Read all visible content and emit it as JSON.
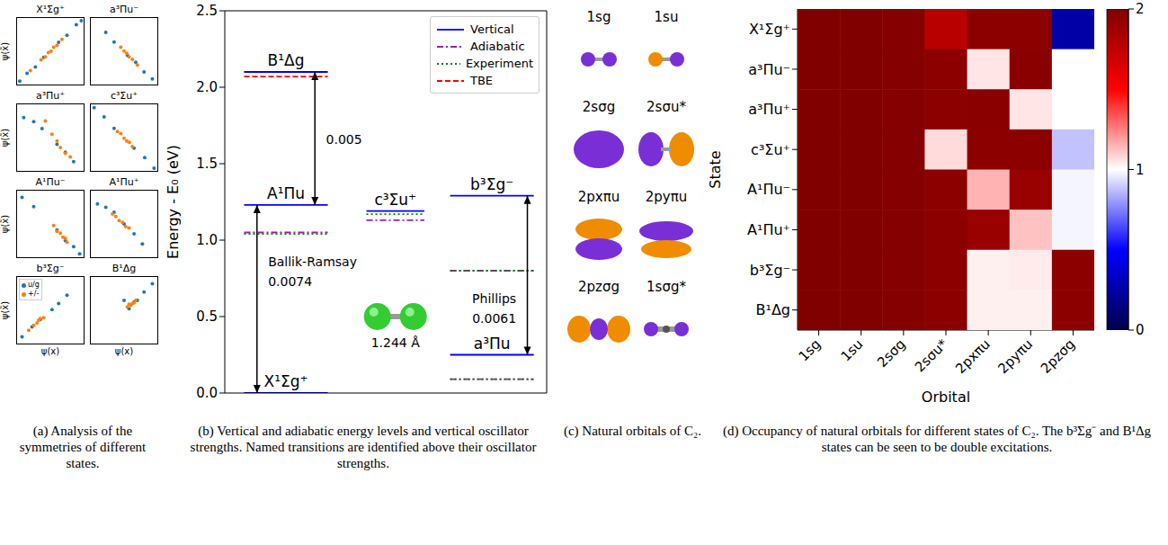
{
  "chart_data": [
    {
      "type": "scatter",
      "caption": "(a) Analysis of the symmetries of different states.",
      "x_label": "ψ(x)",
      "y_label": "ψ(x̃)",
      "xlim": [
        -1,
        1
      ],
      "ylim": [
        -1,
        1
      ],
      "tick_labels": false,
      "legend": "upper left",
      "subplots": [
        {
          "title": "X¹Σg⁺",
          "series": [
            {
              "name": "u/g",
              "color": "#1f77b4",
              "points": [
                [
                  -0.92,
                  -0.9
                ],
                [
                  -0.7,
                  -0.66
                ],
                [
                  -0.45,
                  -0.47
                ],
                [
                  -0.2,
                  -0.18
                ],
                [
                  0.25,
                  0.27
                ],
                [
                  0.5,
                  0.48
                ],
                [
                  0.78,
                  0.8
                ],
                [
                  0.93,
                  0.92
                ]
              ]
            },
            {
              "name": "+/-",
              "color": "#ff7f0e",
              "points": [
                [
                  -0.28,
                  -0.26
                ],
                [
                  -0.15,
                  -0.17
                ],
                [
                  -0.06,
                  -0.04
                ],
                [
                  0.02,
                  0.0
                ],
                [
                  0.1,
                  0.12
                ],
                [
                  0.2,
                  0.18
                ],
                [
                  0.35,
                  0.36
                ],
                [
                  -0.6,
                  -0.58
                ]
              ]
            }
          ]
        },
        {
          "title": "a³Πu⁻",
          "series": [
            {
              "name": "u/g",
              "color": "#1f77b4",
              "points": [
                [
                  -0.55,
                  0.57
                ],
                [
                  -0.3,
                  0.28
                ],
                [
                  0.1,
                  -0.12
                ],
                [
                  0.35,
                  -0.33
                ],
                [
                  0.6,
                  -0.62
                ],
                [
                  0.85,
                  -0.83
                ]
              ]
            },
            {
              "name": "+/-",
              "color": "#ff7f0e",
              "points": [
                [
                  -0.1,
                  0.12
                ],
                [
                  0.0,
                  0.01
                ],
                [
                  0.08,
                  -0.06
                ],
                [
                  0.15,
                  -0.17
                ],
                [
                  0.25,
                  -0.24
                ],
                [
                  0.4,
                  -0.41
                ]
              ]
            }
          ]
        },
        {
          "title": "a³Πu⁺",
          "series": [
            {
              "name": "u/g",
              "color": "#1f77b4",
              "points": [
                [
                  -0.8,
                  0.6
                ],
                [
                  -0.5,
                  0.48
                ],
                [
                  -0.25,
                  0.27
                ],
                [
                  0.2,
                  -0.2
                ],
                [
                  0.45,
                  -0.44
                ],
                [
                  0.7,
                  -0.72
                ]
              ]
            },
            {
              "name": "+/-",
              "color": "#ff7f0e",
              "points": [
                [
                  -0.15,
                  0.5
                ],
                [
                  0.05,
                  0.1
                ],
                [
                  0.2,
                  -0.1
                ],
                [
                  0.3,
                  -0.3
                ],
                [
                  0.45,
                  -0.47
                ],
                [
                  0.6,
                  -0.58
                ]
              ]
            }
          ]
        },
        {
          "title": "c³Σu⁺",
          "series": [
            {
              "name": "u/g",
              "color": "#1f77b4",
              "points": [
                [
                  -0.9,
                  0.9
                ],
                [
                  -0.6,
                  0.62
                ],
                [
                  -0.3,
                  0.28
                ],
                [
                  0.3,
                  -0.32
                ],
                [
                  0.62,
                  -0.6
                ],
                [
                  0.9,
                  -0.92
                ]
              ]
            },
            {
              "name": "+/-",
              "color": "#ff7f0e",
              "points": [
                [
                  -0.2,
                  0.18
                ],
                [
                  -0.1,
                  0.12
                ],
                [
                  0.0,
                  -0.02
                ],
                [
                  0.08,
                  -0.1
                ],
                [
                  0.16,
                  -0.14
                ],
                [
                  0.25,
                  -0.27
                ]
              ]
            }
          ]
        },
        {
          "title": "A¹Πu⁻",
          "series": [
            {
              "name": "u/g",
              "color": "#1f77b4",
              "points": [
                [
                  -0.85,
                  0.8
                ],
                [
                  -0.5,
                  0.52
                ],
                [
                  0.2,
                  -0.18
                ],
                [
                  0.45,
                  -0.5
                ],
                [
                  0.7,
                  -0.68
                ],
                [
                  0.88,
                  -0.9
                ]
              ]
            },
            {
              "name": "+/-",
              "color": "#ff7f0e",
              "points": [
                [
                  0.1,
                  -0.05
                ],
                [
                  0.2,
                  -0.22
                ],
                [
                  0.3,
                  -0.28
                ],
                [
                  0.38,
                  -0.4
                ],
                [
                  0.45,
                  -0.43
                ],
                [
                  0.5,
                  -0.55
                ]
              ]
            }
          ]
        },
        {
          "title": "A¹Πu⁺",
          "series": [
            {
              "name": "u/g",
              "color": "#1f77b4",
              "points": [
                [
                  -0.8,
                  0.6
                ],
                [
                  -0.55,
                  0.5
                ],
                [
                  -0.3,
                  0.35
                ],
                [
                  0.0,
                  0.0
                ],
                [
                  0.3,
                  -0.3
                ],
                [
                  0.55,
                  -0.6
                ]
              ]
            },
            {
              "name": "+/-",
              "color": "#ff7f0e",
              "points": [
                [
                  -0.35,
                  0.3
                ],
                [
                  -0.25,
                  0.22
                ],
                [
                  -0.15,
                  0.1
                ],
                [
                  -0.05,
                  0.05
                ],
                [
                  0.05,
                  -0.08
                ],
                [
                  0.15,
                  -0.12
                ]
              ]
            }
          ]
        },
        {
          "title": "b³Σg⁻",
          "series": [
            {
              "name": "u/g",
              "color": "#1f77b4",
              "points": [
                [
                  -0.85,
                  -0.8
                ],
                [
                  -0.55,
                  -0.5
                ],
                [
                  -0.3,
                  -0.28
                ],
                [
                  0.05,
                  0.02
                ],
                [
                  0.25,
                  0.2
                ],
                [
                  0.5,
                  0.45
                ]
              ]
            },
            {
              "name": "+/-",
              "color": "#ff7f0e",
              "points": [
                [
                  -0.65,
                  -0.6
                ],
                [
                  -0.5,
                  -0.45
                ],
                [
                  -0.4,
                  -0.38
                ],
                [
                  -0.3,
                  -0.25
                ],
                [
                  -0.2,
                  -0.22
                ],
                [
                  -0.35,
                  -0.3
                ]
              ]
            }
          ]
        },
        {
          "title": "B¹Δg",
          "series": [
            {
              "name": "u/g",
              "color": "#1f77b4",
              "points": [
                [
                  0.0,
                  0.3
                ],
                [
                  0.15,
                  0.05
                ],
                [
                  0.3,
                  0.25
                ],
                [
                  0.4,
                  0.3
                ],
                [
                  0.6,
                  0.55
                ],
                [
                  0.85,
                  0.8
                ]
              ]
            },
            {
              "name": "+/-",
              "color": "#ff7f0e",
              "points": [
                [
                  0.1,
                  0.1
                ],
                [
                  0.2,
                  0.15
                ],
                [
                  0.25,
                  0.2
                ],
                [
                  0.3,
                  0.22
                ],
                [
                  0.35,
                  0.3
                ],
                [
                  0.15,
                  0.18
                ]
              ]
            }
          ]
        }
      ]
    },
    {
      "type": "energy_levels",
      "caption": "(b) Vertical and adiabatic energy levels and vertical oscillator strengths. Named transitions are identified above their oscillator strengths.",
      "y_label": "Energy - E₀ (eV)",
      "ylim": [
        0,
        2.5
      ],
      "yticks": [
        {
          "value": 0,
          "label": "0.0"
        },
        {
          "value": 0.5,
          "label": "0.5"
        },
        {
          "value": 1,
          "label": "1.0"
        },
        {
          "value": 1.5,
          "label": "1.5"
        },
        {
          "value": 2,
          "label": "2.0"
        },
        {
          "value": 2.5,
          "label": "2.5"
        }
      ],
      "categories": [
        "X¹Σg⁺",
        "A¹Πu",
        "B¹Δg",
        "c³Σu⁺",
        "a³Πu",
        "b³Σg⁻"
      ],
      "series": [
        {
          "name": "Vertical",
          "color": "#0000ff",
          "line_style": "solid",
          "values": [
            0.0,
            1.23,
            2.1,
            1.19,
            0.25,
            1.29
          ]
        },
        {
          "name": "Adiabatic",
          "color": "#a020a0",
          "line_style": "dashdot",
          "values": [
            null,
            1.05,
            null,
            1.13,
            0.09,
            0.8
          ]
        },
        {
          "name": "Experiment",
          "color": "#008000",
          "line_style": "dotted",
          "values": [
            null,
            1.04,
            null,
            1.17,
            0.09,
            0.8
          ]
        },
        {
          "name": "TBE",
          "color": "#ff0000",
          "line_style": "dashed",
          "values": [
            null,
            null,
            2.07,
            null,
            null,
            null
          ]
        }
      ],
      "legend": "upper right",
      "transitions": [
        {
          "from": "X¹Σg⁺",
          "to": "A¹Πu",
          "name": "Ballik-Ramsay",
          "oscillator_strength": 0.0074
        },
        {
          "from": "A¹Πu",
          "to": "B¹Δg",
          "oscillator_strength": 0.005
        },
        {
          "from": "a³Πu",
          "to": "b³Σg⁻",
          "name": "Phillips",
          "oscillator_strength": 0.0061
        }
      ],
      "annotation": "1.244 Å"
    },
    {
      "type": "diagram",
      "caption": "(c) Natural orbitals of C₂.",
      "orbitals": [
        "1sg",
        "1su",
        "2sσg",
        "2sσu*",
        "2pxπu",
        "2pyπu",
        "2pzσg",
        "1sσg*"
      ]
    },
    {
      "type": "heatmap",
      "caption": "(d) Occupancy of natural orbitals for different states of C₂. The b³Σg⁻ and B¹Δg states can be seen to be double excitations.",
      "x_label": "Orbital",
      "y_label": "State",
      "x": [
        "1sg",
        "1su",
        "2sσg",
        "2sσu*",
        "2pxπu",
        "2pyπu",
        "2pzσg"
      ],
      "y": [
        "X¹Σg⁺",
        "a³Πu⁻",
        "a³Πu⁺",
        "c³Σu⁺",
        "A¹Πu⁻",
        "A¹Πu⁺",
        "b³Σg⁻",
        "B¹Δg"
      ],
      "cells": [
        [
          2.0,
          2.0,
          1.98,
          1.78,
          1.95,
          1.95,
          0.25
        ],
        [
          2.0,
          2.0,
          1.98,
          1.95,
          1.05,
          1.96,
          1.0
        ],
        [
          2.0,
          2.0,
          1.98,
          1.95,
          1.96,
          1.05,
          1.0
        ],
        [
          2.0,
          2.0,
          1.98,
          1.07,
          1.95,
          1.95,
          0.88
        ],
        [
          2.0,
          2.0,
          1.98,
          1.95,
          1.15,
          1.9,
          0.98
        ],
        [
          2.0,
          2.0,
          1.98,
          1.95,
          1.9,
          1.12,
          0.98
        ],
        [
          2.0,
          2.0,
          1.98,
          1.95,
          1.03,
          1.04,
          1.95
        ],
        [
          2.0,
          2.0,
          1.98,
          1.95,
          1.03,
          1.03,
          1.95
        ]
      ],
      "colorbar": {
        "range": [
          0,
          2
        ],
        "ticks": [
          0,
          1,
          2
        ]
      }
    }
  ]
}
